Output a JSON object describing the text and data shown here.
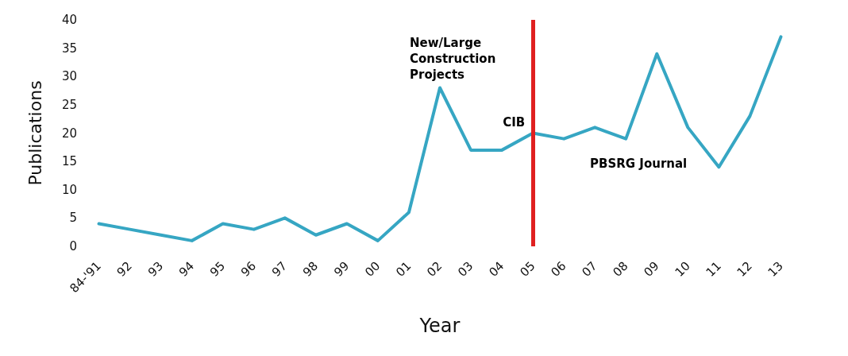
{
  "chart_data": {
    "type": "line",
    "xlabel": "Year",
    "ylabel": "Publications",
    "categories": [
      "84-'91",
      "92",
      "93",
      "94",
      "95",
      "96",
      "97",
      "98",
      "99",
      "00",
      "01",
      "02",
      "03",
      "04",
      "05",
      "06",
      "07",
      "08",
      "09",
      "10",
      "11",
      "12",
      "13"
    ],
    "series": [
      {
        "color": "#36a6c3",
        "values": [
          4,
          3,
          2,
          1,
          4,
          3,
          5,
          2,
          4,
          1,
          6,
          28,
          17,
          17,
          20,
          19,
          21,
          19,
          34,
          21,
          14,
          23,
          37
        ]
      }
    ],
    "ylim": [
      0,
      40
    ],
    "yticks": [
      0,
      5,
      10,
      15,
      20,
      25,
      30,
      35,
      40
    ],
    "grid": false,
    "marker": "none",
    "line_style": "solid",
    "ref_lines": [
      {
        "axis": "x",
        "value": "05",
        "color": "#e02020"
      }
    ],
    "annotations": [
      "New/Large Construction Projects",
      {
        "text": "CIB",
        "x": "05",
        "y": 20
      },
      "PBSRG Journal"
    ]
  }
}
